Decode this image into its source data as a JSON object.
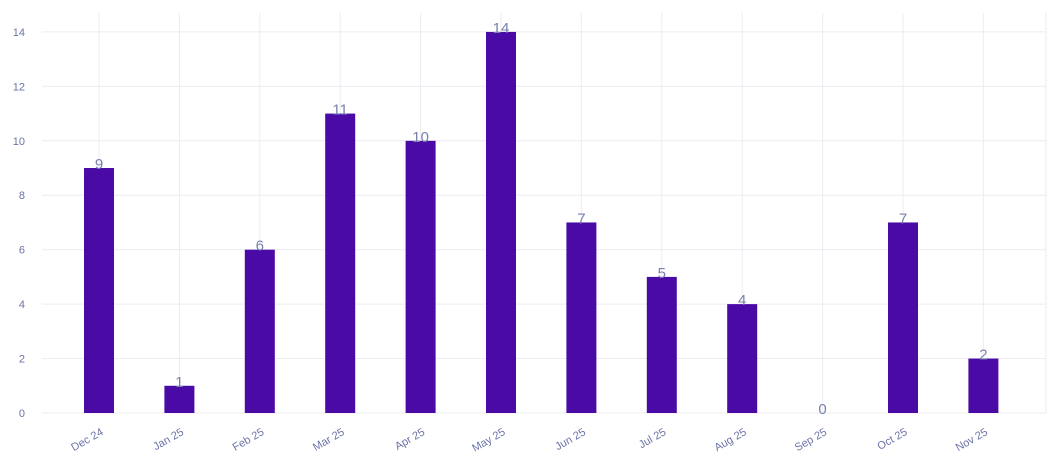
{
  "chart_data": {
    "type": "bar",
    "categories": [
      "Dec 24",
      "Jan 25",
      "Feb 25",
      "Mar 25",
      "Apr 25",
      "May 25",
      "Jun 25",
      "Jul 25",
      "Aug 25",
      "Sep 25",
      "Oct 25",
      "Nov 25"
    ],
    "values": [
      9,
      1,
      6,
      11,
      10,
      14,
      7,
      5,
      4,
      0,
      7,
      2
    ],
    "y_ticks": [
      "0",
      "2",
      "4",
      "6",
      "8",
      "10",
      "12",
      "14"
    ],
    "ylim": [
      0,
      14
    ],
    "title": "",
    "xlabel": "",
    "ylabel": "",
    "grid": true,
    "colors": {
      "bar": "#4a0aa6",
      "grid": "#ececf2",
      "tick_text": "#6b73a8",
      "data_label": "#7880ad"
    }
  }
}
